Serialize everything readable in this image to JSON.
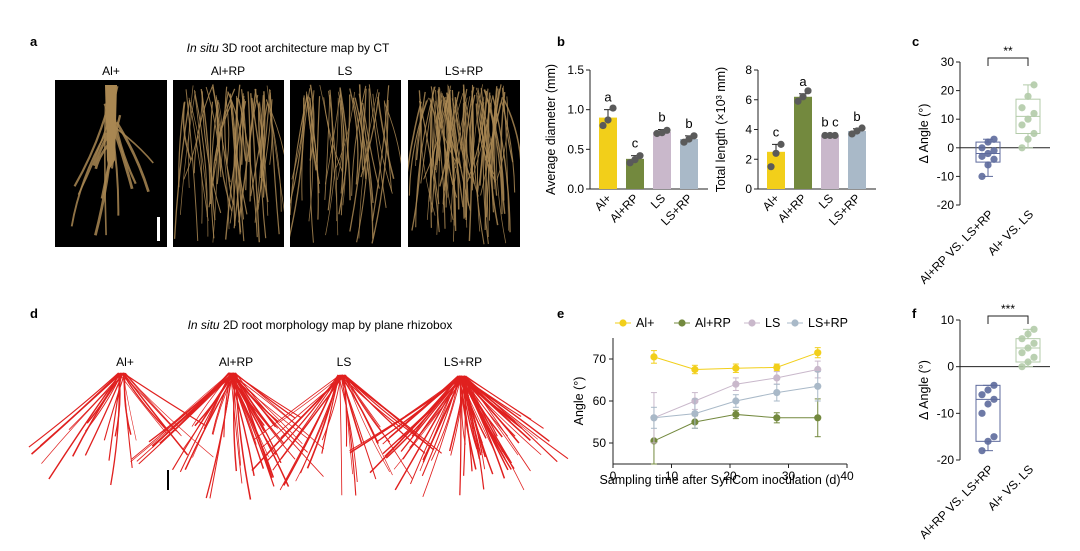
{
  "panels": {
    "a": {
      "letter": "a",
      "title_italic": "In situ",
      "title_rest": " 3D root architecture map by CT",
      "labels": [
        "Al+",
        "Al+RP",
        "LS",
        "LS+RP"
      ]
    },
    "d": {
      "letter": "d",
      "title_italic": "In situ",
      "title_rest": " 2D root morphology map by plane rhizobox",
      "labels": [
        "Al+",
        "Al+RP",
        "LS",
        "LS+RP"
      ]
    }
  },
  "colors": {
    "al": "#f2cf1a",
    "alrp": "#73893e",
    "ls": "#c9b8cb",
    "lsrp": "#a9b9c8",
    "dot": "#5a5a5a",
    "box1": "#5d6a9c",
    "box2": "#b3cba9",
    "root3d": "#a98752",
    "root2d": "#e0201f"
  },
  "chart_data": [
    {
      "id": "b_left",
      "letter": "b",
      "type": "bar",
      "categories": [
        "Al+",
        "Al+RP",
        "LS",
        "LS+RP"
      ],
      "values": [
        0.9,
        0.38,
        0.72,
        0.63
      ],
      "errors": [
        0.1,
        0.04,
        0.03,
        0.04
      ],
      "points": [
        [
          0.8,
          0.87,
          1.02
        ],
        [
          0.33,
          0.37,
          0.42
        ],
        [
          0.7,
          0.71,
          0.74
        ],
        [
          0.59,
          0.63,
          0.67
        ]
      ],
      "letters": [
        "a",
        "c",
        "b",
        "b"
      ],
      "ylabel": "Average diameter (mm)",
      "ylim": [
        0,
        1.5
      ],
      "yticks": [
        "0.0",
        "0.5",
        "1.0",
        "1.5"
      ]
    },
    {
      "id": "b_right",
      "type": "bar",
      "categories": [
        "Al+",
        "Al+RP",
        "LS",
        "LS+RP"
      ],
      "values": [
        2.5,
        6.2,
        3.6,
        3.9
      ],
      "errors": [
        0.5,
        0.2,
        0.05,
        0.15
      ],
      "points": [
        [
          1.5,
          2.4,
          3.0
        ],
        [
          5.9,
          6.2,
          6.6
        ],
        [
          3.6,
          3.6,
          3.6
        ],
        [
          3.7,
          3.9,
          4.1
        ]
      ],
      "letters": [
        "c",
        "a",
        "b c",
        "b"
      ],
      "ylabel": "Total length (×10³ mm)",
      "ylim": [
        0,
        8
      ],
      "yticks": [
        "0",
        "2",
        "4",
        "6",
        "8"
      ]
    },
    {
      "id": "c",
      "letter": "c",
      "type": "box",
      "categories": [
        "Al+RP VS. LS+RP",
        "Al+ VS. LS"
      ],
      "ylabel": "Δ Angle (°)",
      "ylim": [
        -20,
        30
      ],
      "yticks": [
        "-20",
        "-10",
        "0",
        "10",
        "20",
        "30"
      ],
      "boxes": [
        {
          "q1": -5,
          "median": -2,
          "q3": 2,
          "min": -10,
          "max": 3,
          "points": [
            -10,
            -6,
            -4,
            -3,
            -2,
            -1,
            0,
            2,
            3
          ]
        },
        {
          "q1": 5,
          "median": 11,
          "q3": 17,
          "min": 0,
          "max": 22,
          "points": [
            0,
            3,
            5,
            8,
            10,
            12,
            14,
            18,
            22
          ]
        }
      ],
      "significance": "**"
    },
    {
      "id": "e",
      "letter": "e",
      "type": "line",
      "legend": [
        "Al+",
        "Al+RP",
        "LS",
        "LS+RP"
      ],
      "x": [
        7,
        14,
        21,
        28,
        35
      ],
      "series": [
        {
          "name": "Al+",
          "values": [
            70.5,
            67.5,
            67.8,
            68.0,
            71.5
          ],
          "errors": [
            1.5,
            1.0,
            1.0,
            0.8,
            1.2
          ]
        },
        {
          "name": "Al+RP",
          "values": [
            50.5,
            55.0,
            56.8,
            56.0,
            56.0
          ],
          "errors": [
            5.5,
            1.5,
            1.0,
            1.2,
            4.5
          ]
        },
        {
          "name": "LS",
          "values": [
            56.0,
            60.0,
            64.0,
            65.5,
            67.5
          ],
          "errors": [
            6.0,
            2.0,
            1.5,
            1.5,
            2.0
          ]
        },
        {
          "name": "LS+RP",
          "values": [
            56.0,
            57.0,
            60.0,
            62.0,
            63.5
          ],
          "errors": [
            2.5,
            3.5,
            1.5,
            2.0,
            3.5
          ]
        }
      ],
      "xlabel": "Sampling time after SynCom inoculation (d)",
      "ylabel": "Angle (°)",
      "xlim": [
        0,
        40
      ],
      "ylim": [
        45,
        75
      ],
      "xticks": [
        "0",
        "10",
        "20",
        "30",
        "40"
      ],
      "yticks": [
        "50",
        "60",
        "70"
      ]
    },
    {
      "id": "f",
      "letter": "f",
      "type": "box",
      "categories": [
        "Al+RP VS. LS+RP",
        "Al+ VS. LS"
      ],
      "ylabel": "Δ Angle (°)",
      "ylim": [
        -20,
        10
      ],
      "yticks": [
        "-20",
        "-10",
        "0",
        "10"
      ],
      "boxes": [
        {
          "q1": -16,
          "median": -7,
          "q3": -4,
          "min": -18,
          "max": -4,
          "points": [
            -18,
            -16,
            -15,
            -10,
            -8,
            -7,
            -6,
            -5,
            -4
          ]
        },
        {
          "q1": 1,
          "median": 4,
          "q3": 6,
          "min": 0,
          "max": 8,
          "points": [
            0,
            1,
            2,
            3,
            4,
            5,
            6,
            7,
            8
          ]
        }
      ],
      "significance": "***"
    }
  ]
}
